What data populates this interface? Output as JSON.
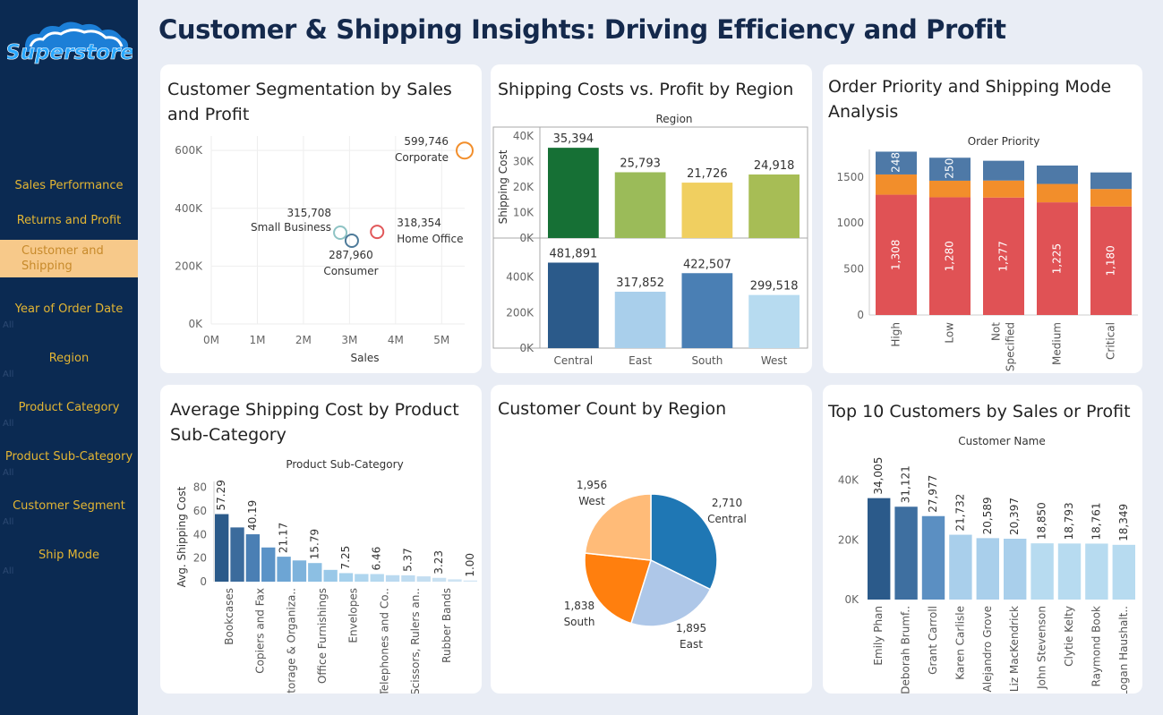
{
  "app": {
    "logo_text": "Superstore",
    "title": "Customer & Shipping Insights: Driving Efficiency and Profit"
  },
  "colors": {
    "sidebar": "#0b2a52",
    "nav_text": "#e3b533",
    "nav_active_bg": "#f7c98a",
    "title": "#14294c",
    "accent_blue": "#1f77b4",
    "accent_orange": "#f28e2b",
    "accent_red": "#e15759"
  },
  "sidebar": {
    "items": [
      {
        "label": "Sales Performance",
        "filter": ""
      },
      {
        "label": "Returns and Profit",
        "filter": ""
      },
      {
        "label": "Customer and Shipping",
        "filter": "",
        "active": true
      },
      {
        "label": "Year of Order Date",
        "filter": "All"
      },
      {
        "label": "Region",
        "filter": "All"
      },
      {
        "label": "Product Category",
        "filter": "All"
      },
      {
        "label": "Product Sub-Category",
        "filter": "All"
      },
      {
        "label": "Customer Segment",
        "filter": "All"
      },
      {
        "label": "Ship Mode",
        "filter": "All"
      }
    ]
  },
  "cards": {
    "segmentation": {
      "title": "Customer Segmentation by Sales and Profit"
    },
    "shipping_profit": {
      "title": "Shipping Costs vs. Profit by Region"
    },
    "priority": {
      "title": "Order Priority and Shipping Mode Analysis"
    },
    "avg_shipping": {
      "title": "Average Shipping Cost by Product Sub-Category"
    },
    "customer_count": {
      "title": "Customer Count by Region"
    },
    "top10": {
      "title": "Top 10 Customers by Sales or Profit"
    }
  },
  "chart_data": [
    {
      "id": "segmentation",
      "type": "scatter",
      "title": "Customer Segmentation by Sales and Profit",
      "xlabel": "Sales",
      "ylabel": "",
      "x_ticks": [
        "0M",
        "1M",
        "2M",
        "3M",
        "4M",
        "5M"
      ],
      "y_ticks": [
        "0K",
        "200K",
        "400K",
        "600K"
      ],
      "xlim": [
        0,
        5.5
      ],
      "ylim": [
        0,
        650
      ],
      "grid": true,
      "points": [
        {
          "name": "Corporate",
          "x": 5.5,
          "y": 599.746,
          "label": "599,746",
          "color": "#f28e2b"
        },
        {
          "name": "Small Business",
          "x": 2.8,
          "y": 315.708,
          "label": "315,708",
          "color": "#8ec3c4"
        },
        {
          "name": "Consumer",
          "x": 3.05,
          "y": 287.96,
          "label": "287,960",
          "color": "#4e7b9a"
        },
        {
          "name": "Home Office",
          "x": 3.6,
          "y": 318.354,
          "label": "318,354",
          "color": "#e15759"
        }
      ]
    },
    {
      "id": "shipping_profit",
      "type": "bar",
      "title": "Region",
      "categories": [
        "Central",
        "East",
        "South",
        "West"
      ],
      "series": [
        {
          "name": "Shipping Cost",
          "values": [
            35394,
            25793,
            21726,
            24918
          ],
          "labels": [
            "35,394",
            "25,793",
            "21,726",
            "24,918"
          ],
          "colors": [
            "#167035",
            "#9bbb59",
            "#f0cf60",
            "#a7bd55"
          ],
          "ticks": [
            "40K",
            "30K",
            "20K",
            "10K",
            "0K"
          ],
          "ylim": [
            0,
            40000
          ],
          "ylabel": "Shipping Cost"
        },
        {
          "name": "Profit",
          "values": [
            481891,
            317852,
            422507,
            299518
          ],
          "labels": [
            "481,891",
            "317,852",
            "422,507",
            "299,518"
          ],
          "colors": [
            "#2b5a8a",
            "#a9cfeb",
            "#4a7fb4",
            "#b7dbf0"
          ],
          "ticks": [
            "400K",
            "200K",
            "0K"
          ],
          "ylim": [
            0,
            560000
          ],
          "ylabel": ""
        }
      ]
    },
    {
      "id": "priority",
      "type": "bar",
      "stacked": true,
      "title": "Order Priority",
      "categories": [
        "High",
        "Low",
        "Not Specified",
        "Medium",
        "Critical"
      ],
      "y_ticks": [
        "1500",
        "1000",
        "500",
        "0"
      ],
      "ylim": [
        0,
        1800
      ],
      "series": [
        {
          "color": "#e05255",
          "values": [
            1308,
            1280,
            1277,
            1225,
            1180
          ],
          "labels": [
            "1,308",
            "1,280",
            "1,277",
            "1,225",
            "1,180"
          ]
        },
        {
          "color": "#f28e2b",
          "values": [
            220,
            180,
            185,
            200,
            190
          ],
          "labels": [
            "",
            "",
            "",
            "",
            ""
          ]
        },
        {
          "color": "#4e79a7",
          "values": [
            248,
            250,
            215,
            200,
            180
          ],
          "labels": [
            "248",
            "250",
            "",
            "",
            ""
          ]
        }
      ]
    },
    {
      "id": "avg_shipping",
      "type": "bar",
      "title": "Product Sub-Category",
      "ylabel": "Avg. Shipping Cost",
      "y_ticks": [
        "80",
        "60",
        "40",
        "20",
        "0"
      ],
      "ylim": [
        0,
        85
      ],
      "values": [
        57.29,
        46,
        40.19,
        29,
        21.17,
        18,
        15.79,
        10,
        7.25,
        6.5,
        6.46,
        5.5,
        5.37,
        4.5,
        3.23,
        2,
        1.0
      ],
      "value_labels": [
        "57.29",
        "",
        "40.19",
        "",
        "21.17",
        "",
        "15.79",
        "",
        "7.25",
        "",
        "6.46",
        "",
        "5.37",
        "",
        "3.23",
        "",
        "1.00"
      ],
      "categories": [
        "Bookcases",
        "",
        "Copiers and Fax",
        "",
        "Storage & Organiza..",
        "",
        "Office Furnishings",
        "",
        "Envelopes",
        "",
        "Telephones and Co..",
        "",
        "Scissors, Rulers an..",
        "",
        "Rubber Bands",
        "",
        ""
      ],
      "colors": [
        "#2b5a8a",
        "#3b6b9c",
        "#4a7fb4",
        "#5b93c7",
        "#6da5d4",
        "#7eb3dc",
        "#8cbfe3",
        "#99c8e8",
        "#a5d0ec",
        "#aed5ee",
        "#b4d8ef",
        "#bad9f0",
        "#bfdcf1",
        "#c4def1",
        "#c9e1f2",
        "#cee3f3",
        "#d3e6f4"
      ]
    },
    {
      "id": "customer_count",
      "type": "pie",
      "title": "Customer Count by Region",
      "slices": [
        {
          "name": "Central",
          "value": 2710,
          "label": "2,710",
          "color": "#1f77b4"
        },
        {
          "name": "East",
          "value": 1895,
          "label": "1,895",
          "color": "#aec7e8"
        },
        {
          "name": "South",
          "value": 1838,
          "label": "1,838",
          "color": "#ff7f0e"
        },
        {
          "name": "West",
          "value": 1956,
          "label": "1,956",
          "color": "#ffbb78"
        }
      ]
    },
    {
      "id": "top10",
      "type": "bar",
      "title": "Customer Name",
      "y_ticks": [
        "40K",
        "20K",
        "0K"
      ],
      "ylim": [
        0,
        48000
      ],
      "categories": [
        "Emily Phan",
        "Deborah Brumf..",
        "Grant Carroll",
        "Karen Carlisle",
        "Alejandro Grove",
        "Liz MacKendrick",
        "John Stevenson",
        "Clytie Kelty",
        "Raymond Book",
        "Logan Haushalt.."
      ],
      "values": [
        34005,
        31121,
        27977,
        21732,
        20589,
        20397,
        18850,
        18793,
        18761,
        18349
      ],
      "labels": [
        "34,005",
        "31,121",
        "27,977",
        "21,732",
        "20,589",
        "20,397",
        "18,850",
        "18,793",
        "18,761",
        "18,349"
      ],
      "colors": [
        "#2b5a8a",
        "#3e6fa0",
        "#5b8fc2",
        "#a9cfeb",
        "#a9cfeb",
        "#a9cfeb",
        "#b7dbf0",
        "#b7dbf0",
        "#b7dbf0",
        "#b7dbf0"
      ]
    }
  ]
}
